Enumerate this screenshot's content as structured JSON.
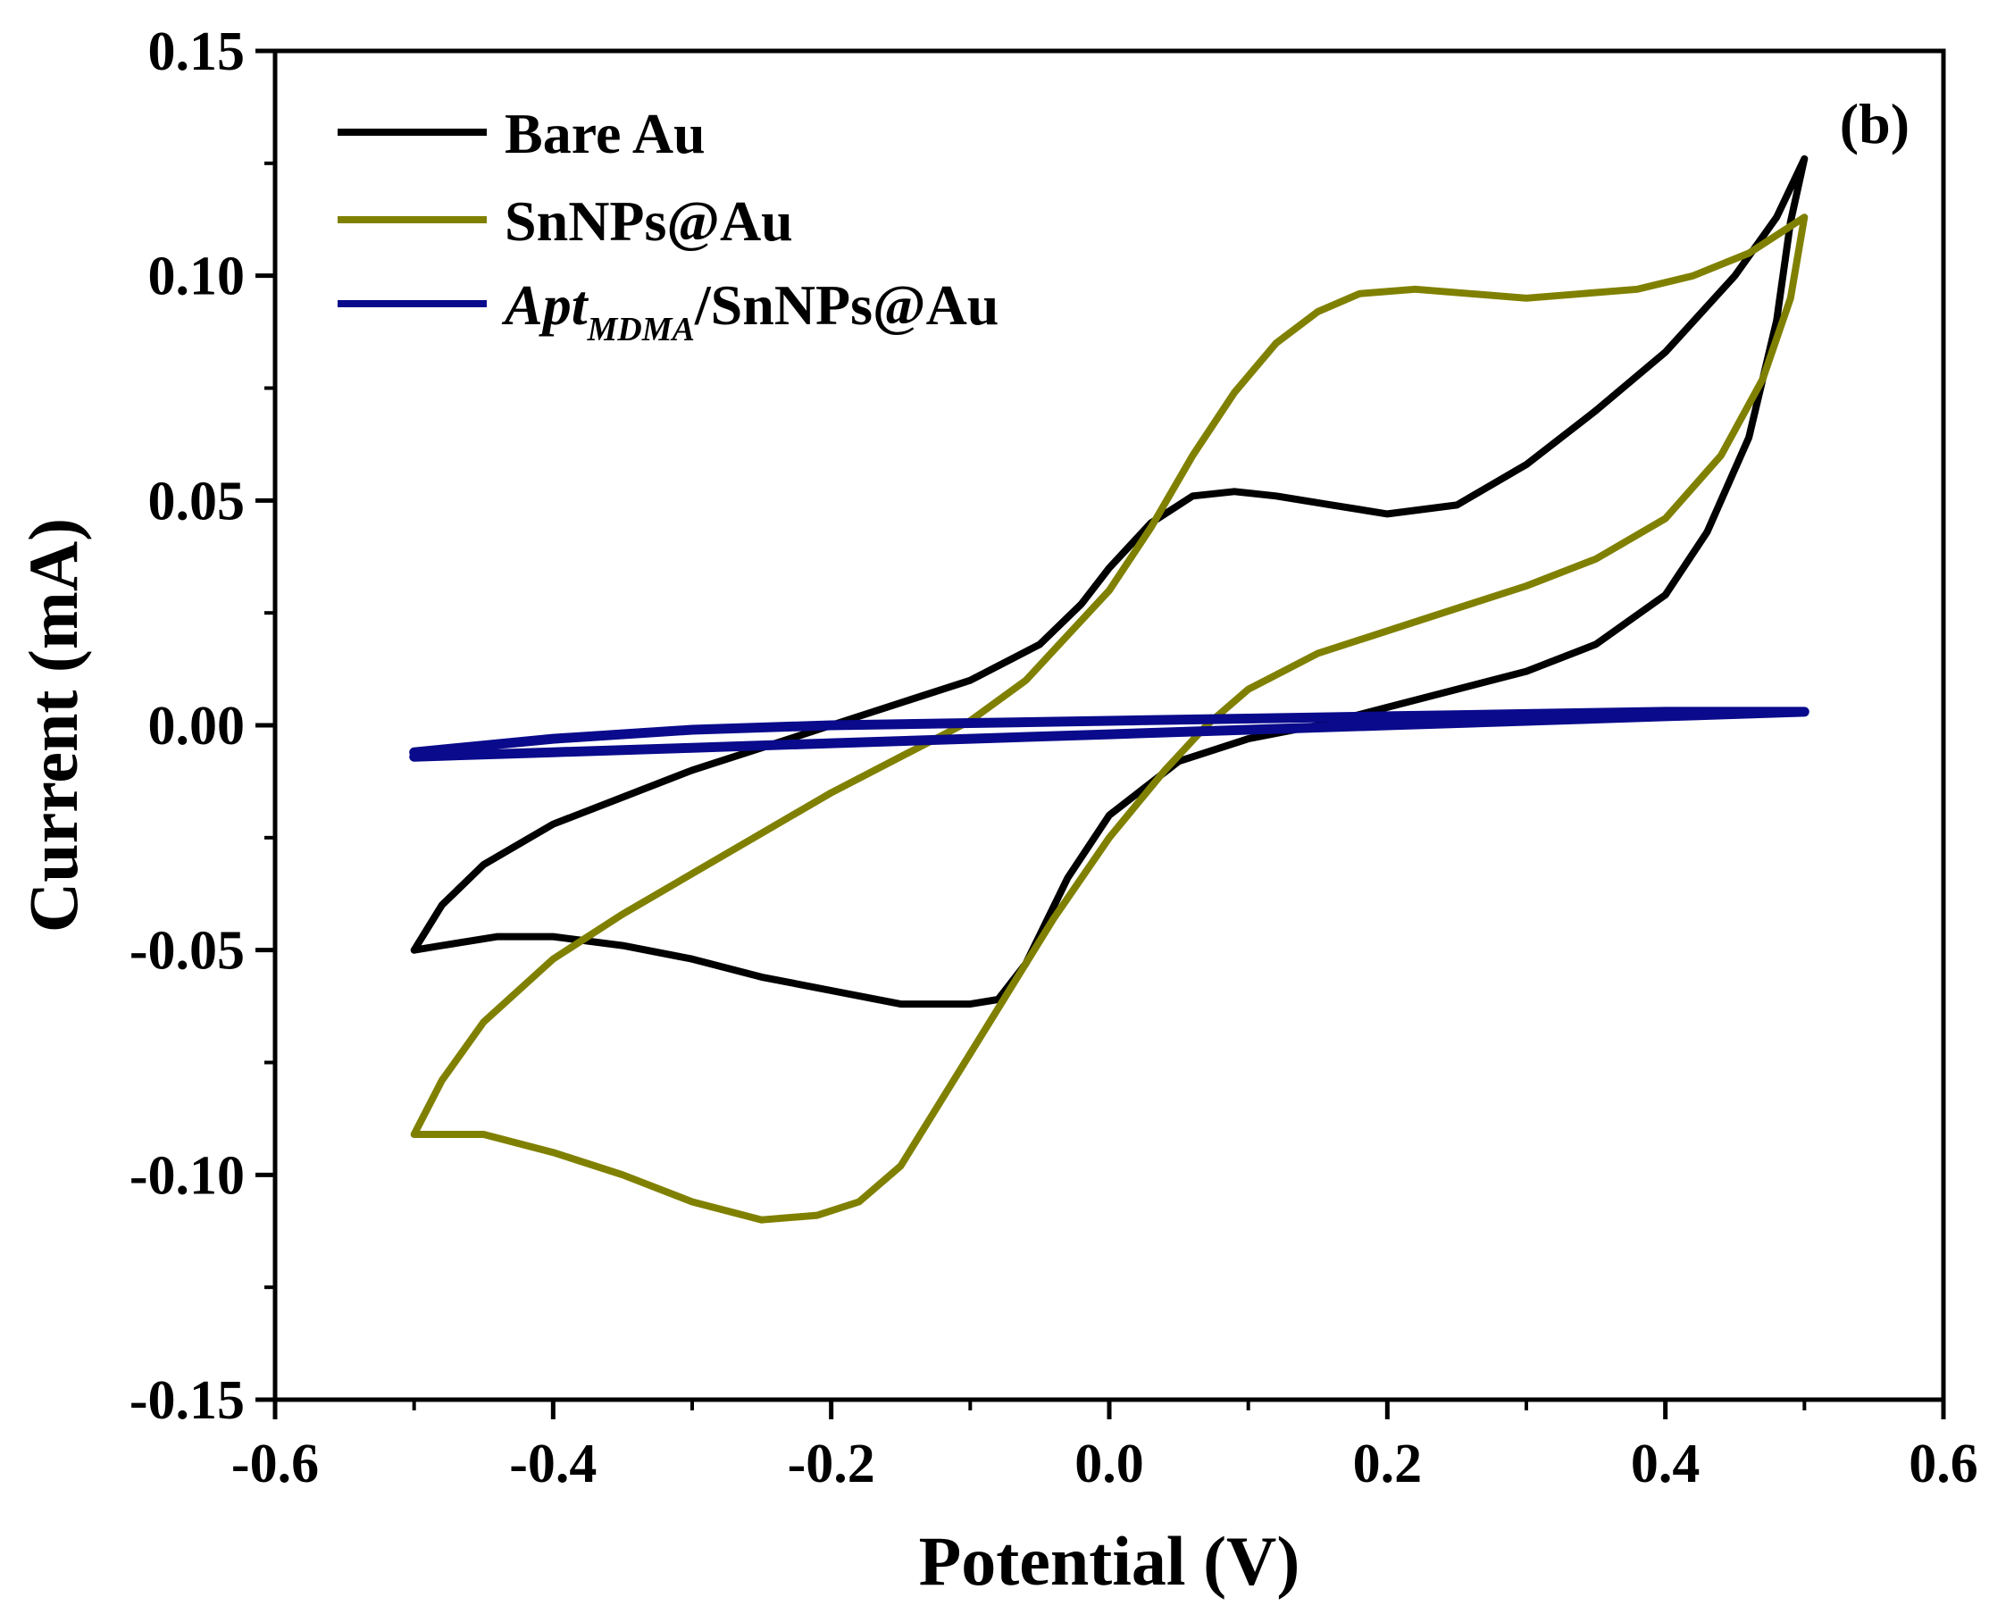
{
  "chart_data": {
    "type": "line",
    "title": "",
    "panel_label": "(b)",
    "xlabel": "Potential (V)",
    "ylabel": "Current (mA)",
    "xlim": [
      -0.6,
      0.6
    ],
    "ylim": [
      -0.15,
      0.15
    ],
    "x_ticks": [
      -0.6,
      -0.4,
      -0.2,
      0.0,
      0.2,
      0.4,
      0.6
    ],
    "x_tick_labels": [
      "-0.6",
      "-0.4",
      "-0.2",
      "0.0",
      "0.2",
      "0.4",
      "0.6"
    ],
    "y_ticks": [
      0.15,
      0.1,
      0.05,
      0.0,
      -0.05,
      -0.1,
      -0.15
    ],
    "y_tick_labels": [
      "0.15",
      "0.10",
      "0.05",
      "0.00",
      "-0.05",
      "-0.10",
      "-0.15"
    ],
    "grid": false,
    "legend_position": "top-left",
    "series": [
      {
        "name": "Bare Au",
        "color": "#000000",
        "points": [
          [
            -0.5,
            -0.05
          ],
          [
            -0.48,
            -0.04
          ],
          [
            -0.45,
            -0.031
          ],
          [
            -0.4,
            -0.022
          ],
          [
            -0.35,
            -0.016
          ],
          [
            -0.3,
            -0.01
          ],
          [
            -0.25,
            -0.005
          ],
          [
            -0.2,
            0.0
          ],
          [
            -0.15,
            0.005
          ],
          [
            -0.1,
            0.01
          ],
          [
            -0.05,
            0.018
          ],
          [
            -0.02,
            0.027
          ],
          [
            0.0,
            0.035
          ],
          [
            0.03,
            0.045
          ],
          [
            0.06,
            0.051
          ],
          [
            0.09,
            0.052
          ],
          [
            0.12,
            0.051
          ],
          [
            0.16,
            0.049
          ],
          [
            0.2,
            0.047
          ],
          [
            0.25,
            0.049
          ],
          [
            0.3,
            0.058
          ],
          [
            0.35,
            0.07
          ],
          [
            0.4,
            0.083
          ],
          [
            0.45,
            0.1
          ],
          [
            0.48,
            0.113
          ],
          [
            0.5,
            0.126
          ],
          [
            0.49,
            0.112
          ],
          [
            0.48,
            0.09
          ],
          [
            0.46,
            0.064
          ],
          [
            0.43,
            0.043
          ],
          [
            0.4,
            0.029
          ],
          [
            0.35,
            0.018
          ],
          [
            0.3,
            0.012
          ],
          [
            0.25,
            0.008
          ],
          [
            0.2,
            0.004
          ],
          [
            0.15,
            0.0
          ],
          [
            0.1,
            -0.003
          ],
          [
            0.05,
            -0.008
          ],
          [
            0.0,
            -0.02
          ],
          [
            -0.03,
            -0.034
          ],
          [
            -0.06,
            -0.053
          ],
          [
            -0.08,
            -0.061
          ],
          [
            -0.1,
            -0.062
          ],
          [
            -0.15,
            -0.062
          ],
          [
            -0.2,
            -0.059
          ],
          [
            -0.25,
            -0.056
          ],
          [
            -0.3,
            -0.052
          ],
          [
            -0.35,
            -0.049
          ],
          [
            -0.4,
            -0.047
          ],
          [
            -0.44,
            -0.047
          ],
          [
            -0.48,
            -0.049
          ],
          [
            -0.5,
            -0.05
          ]
        ]
      },
      {
        "name": "SnNPs@Au",
        "color": "#808000",
        "points": [
          [
            -0.5,
            -0.091
          ],
          [
            -0.48,
            -0.079
          ],
          [
            -0.45,
            -0.066
          ],
          [
            -0.4,
            -0.052
          ],
          [
            -0.35,
            -0.042
          ],
          [
            -0.3,
            -0.033
          ],
          [
            -0.25,
            -0.024
          ],
          [
            -0.2,
            -0.015
          ],
          [
            -0.15,
            -0.007
          ],
          [
            -0.1,
            0.001
          ],
          [
            -0.06,
            0.01
          ],
          [
            -0.03,
            0.02
          ],
          [
            0.0,
            0.03
          ],
          [
            0.03,
            0.044
          ],
          [
            0.06,
            0.06
          ],
          [
            0.09,
            0.074
          ],
          [
            0.12,
            0.085
          ],
          [
            0.15,
            0.092
          ],
          [
            0.18,
            0.096
          ],
          [
            0.22,
            0.097
          ],
          [
            0.26,
            0.096
          ],
          [
            0.3,
            0.095
          ],
          [
            0.34,
            0.096
          ],
          [
            0.38,
            0.097
          ],
          [
            0.42,
            0.1
          ],
          [
            0.46,
            0.105
          ],
          [
            0.5,
            0.113
          ],
          [
            0.49,
            0.095
          ],
          [
            0.47,
            0.077
          ],
          [
            0.44,
            0.06
          ],
          [
            0.4,
            0.046
          ],
          [
            0.35,
            0.037
          ],
          [
            0.3,
            0.031
          ],
          [
            0.25,
            0.026
          ],
          [
            0.2,
            0.021
          ],
          [
            0.15,
            0.016
          ],
          [
            0.1,
            0.008
          ],
          [
            0.07,
            0.0
          ],
          [
            0.04,
            -0.01
          ],
          [
            0.0,
            -0.025
          ],
          [
            -0.04,
            -0.043
          ],
          [
            -0.08,
            -0.063
          ],
          [
            -0.12,
            -0.083
          ],
          [
            -0.15,
            -0.098
          ],
          [
            -0.18,
            -0.106
          ],
          [
            -0.21,
            -0.109
          ],
          [
            -0.25,
            -0.11
          ],
          [
            -0.3,
            -0.106
          ],
          [
            -0.35,
            -0.1
          ],
          [
            -0.4,
            -0.095
          ],
          [
            -0.45,
            -0.091
          ],
          [
            -0.5,
            -0.091
          ]
        ]
      },
      {
        "name": "AptMDMA/SnNPs@Au",
        "color": "#0a0a8c",
        "points": [
          [
            -0.5,
            -0.006
          ],
          [
            -0.4,
            -0.003
          ],
          [
            -0.3,
            -0.001
          ],
          [
            -0.2,
            0.0
          ],
          [
            -0.1,
            0.0005
          ],
          [
            0.0,
            0.001
          ],
          [
            0.1,
            0.0015
          ],
          [
            0.2,
            0.002
          ],
          [
            0.3,
            0.0025
          ],
          [
            0.4,
            0.003
          ],
          [
            0.5,
            0.003
          ],
          [
            0.4,
            0.002
          ],
          [
            0.3,
            0.001
          ],
          [
            0.2,
            0.0
          ],
          [
            0.1,
            -0.001
          ],
          [
            0.0,
            -0.002
          ],
          [
            -0.1,
            -0.003
          ],
          [
            -0.2,
            -0.004
          ],
          [
            -0.3,
            -0.005
          ],
          [
            -0.4,
            -0.006
          ],
          [
            -0.5,
            -0.007
          ]
        ]
      }
    ]
  },
  "legend": {
    "items": [
      {
        "label": "Bare Au"
      },
      {
        "label": "SnNPs@Au"
      },
      {
        "label_main": "Apt",
        "label_sub": "MDMA",
        "label_rest": "/SnNPs@Au"
      }
    ]
  }
}
